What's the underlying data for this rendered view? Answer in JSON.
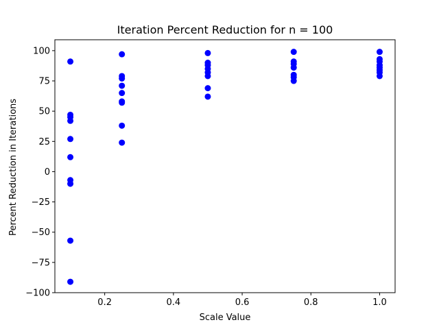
{
  "chart_data": {
    "type": "scatter",
    "title": "Iteration Percent Reduction for n = 100",
    "xlabel": "Scale Value",
    "ylabel": "Percent Reduction in Iterations",
    "xlim": [
      0.055,
      1.045
    ],
    "ylim": [
      -100,
      109
    ],
    "xticks": [
      0.2,
      0.4,
      0.6,
      0.8,
      1.0
    ],
    "xtick_labels": [
      "0.2",
      "0.4",
      "0.6",
      "0.8",
      "1.0"
    ],
    "yticks": [
      -100,
      -75,
      -50,
      -25,
      0,
      25,
      50,
      75,
      100
    ],
    "ytick_labels": [
      "−100",
      "−75",
      "−50",
      "−25",
      "0",
      "25",
      "50",
      "75",
      "100"
    ],
    "grid": false,
    "marker_color": "#0000ff",
    "series": [
      {
        "points": [
          {
            "x": 0.1,
            "y": 91
          },
          {
            "x": 0.1,
            "y": 47
          },
          {
            "x": 0.1,
            "y": 45
          },
          {
            "x": 0.1,
            "y": 42
          },
          {
            "x": 0.1,
            "y": 27
          },
          {
            "x": 0.1,
            "y": 12
          },
          {
            "x": 0.1,
            "y": -7
          },
          {
            "x": 0.1,
            "y": -10
          },
          {
            "x": 0.1,
            "y": -57
          },
          {
            "x": 0.1,
            "y": -91
          },
          {
            "x": 0.25,
            "y": 97
          },
          {
            "x": 0.25,
            "y": 79
          },
          {
            "x": 0.25,
            "y": 77
          },
          {
            "x": 0.25,
            "y": 71
          },
          {
            "x": 0.25,
            "y": 65
          },
          {
            "x": 0.25,
            "y": 58
          },
          {
            "x": 0.25,
            "y": 57
          },
          {
            "x": 0.25,
            "y": 38
          },
          {
            "x": 0.25,
            "y": 24
          },
          {
            "x": 0.5,
            "y": 98
          },
          {
            "x": 0.5,
            "y": 90
          },
          {
            "x": 0.5,
            "y": 88
          },
          {
            "x": 0.5,
            "y": 85
          },
          {
            "x": 0.5,
            "y": 82
          },
          {
            "x": 0.5,
            "y": 79
          },
          {
            "x": 0.5,
            "y": 69
          },
          {
            "x": 0.5,
            "y": 62
          },
          {
            "x": 0.75,
            "y": 99
          },
          {
            "x": 0.75,
            "y": 91
          },
          {
            "x": 0.75,
            "y": 89
          },
          {
            "x": 0.75,
            "y": 86
          },
          {
            "x": 0.75,
            "y": 80
          },
          {
            "x": 0.75,
            "y": 78
          },
          {
            "x": 0.75,
            "y": 75
          },
          {
            "x": 1.0,
            "y": 99
          },
          {
            "x": 1.0,
            "y": 93
          },
          {
            "x": 1.0,
            "y": 91
          },
          {
            "x": 1.0,
            "y": 88
          },
          {
            "x": 1.0,
            "y": 86
          },
          {
            "x": 1.0,
            "y": 84
          },
          {
            "x": 1.0,
            "y": 82
          },
          {
            "x": 1.0,
            "y": 79
          }
        ]
      }
    ]
  }
}
